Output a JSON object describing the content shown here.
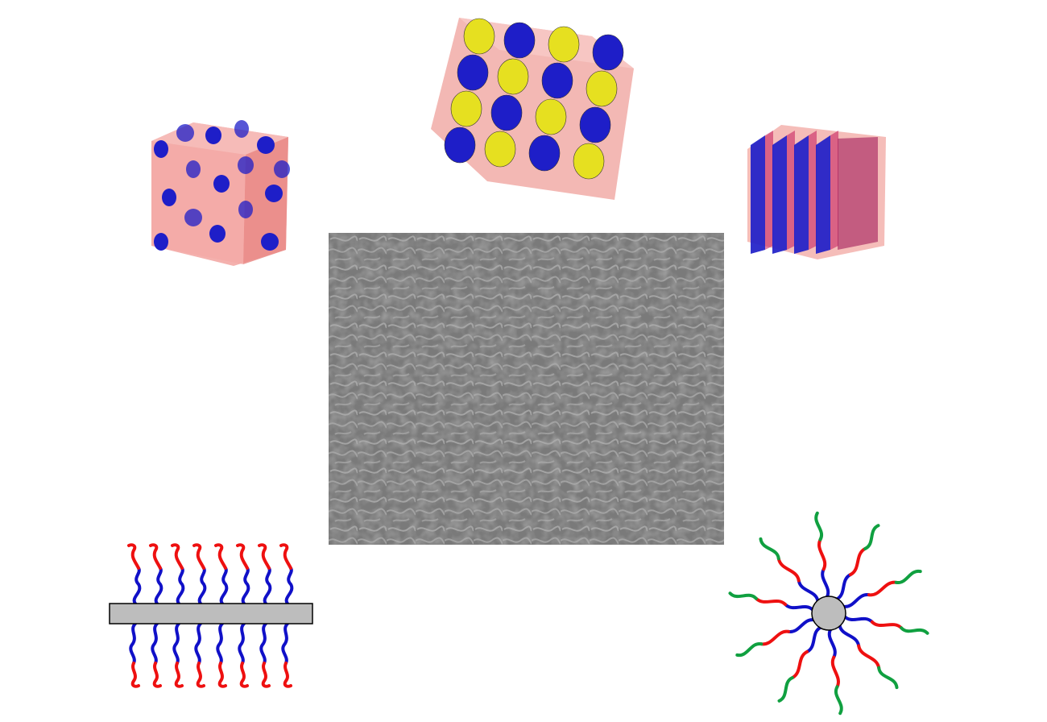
{
  "figure": {
    "panels": [
      {
        "id": "spheres-morphology",
        "kind": "3d-render"
      },
      {
        "id": "gyroid-morphology",
        "kind": "3d-render"
      },
      {
        "id": "lamellae-morphology",
        "kind": "3d-render"
      },
      {
        "id": "tem-micrograph",
        "kind": "microscopy-image"
      },
      {
        "id": "brush-copolymer-schematic",
        "kind": "schematic"
      },
      {
        "id": "star-copolymer-schematic",
        "kind": "schematic"
      }
    ],
    "colors": {
      "matrix": "#e98a86",
      "block_blue": "#1e1ec8",
      "block_yellow": "#e6e020",
      "chain_red": "#ee1010",
      "chain_blue": "#1010c8",
      "chain_green": "#10a040",
      "backbone_gray": "#bdbdbd",
      "micrograph_bg": "#7a7a7a"
    }
  }
}
